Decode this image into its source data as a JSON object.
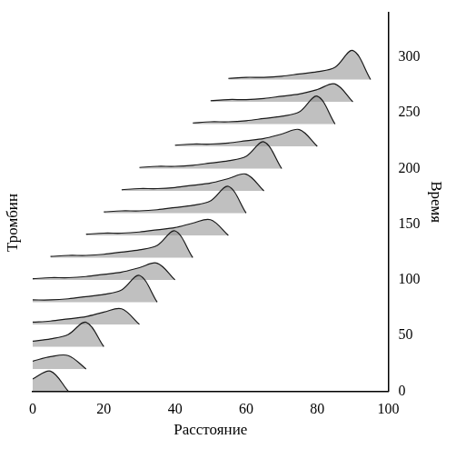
{
  "chart_data": {
    "type": "waterfall",
    "x_label": "Расстояние",
    "y_label": "Время",
    "z_label": "Тромбин",
    "color": "#1a1a1a",
    "grid": false,
    "x": [
      0,
      5,
      10,
      15,
      20,
      25,
      30,
      35,
      40,
      45,
      50,
      55,
      60,
      65,
      70,
      75,
      80,
      85,
      90,
      95,
      100
    ],
    "xlim": [
      0,
      100
    ],
    "xticks": [
      0,
      20,
      40,
      60,
      80,
      100
    ],
    "ylim": [
      0,
      340
    ],
    "yticks": [
      0,
      50,
      100,
      150,
      200,
      250,
      300
    ],
    "series": [
      {
        "time": 0,
        "values": [
          11,
          18,
          0,
          null,
          null,
          null,
          null,
          null,
          null,
          null,
          null,
          null,
          null,
          null,
          null,
          null,
          null,
          null,
          null,
          null,
          null
        ]
      },
      {
        "time": 20,
        "values": [
          7,
          11,
          12,
          0,
          null,
          null,
          null,
          null,
          null,
          null,
          null,
          null,
          null,
          null,
          null,
          null,
          null,
          null,
          null,
          null,
          null
        ]
      },
      {
        "time": 40,
        "values": [
          5,
          7,
          11,
          22,
          0,
          null,
          null,
          null,
          null,
          null,
          null,
          null,
          null,
          null,
          null,
          null,
          null,
          null,
          null,
          null,
          null
        ]
      },
      {
        "time": 60,
        "values": [
          2,
          3,
          5,
          7,
          11,
          14,
          0,
          null,
          null,
          null,
          null,
          null,
          null,
          null,
          null,
          null,
          null,
          null,
          null,
          null,
          null
        ]
      },
      {
        "time": 80,
        "values": [
          2,
          2,
          3,
          5,
          7,
          11,
          24,
          0,
          null,
          null,
          null,
          null,
          null,
          null,
          null,
          null,
          null,
          null,
          null,
          null,
          null
        ]
      },
      {
        "time": 100,
        "values": [
          1,
          2,
          2,
          3,
          5,
          7,
          11,
          15,
          0,
          null,
          null,
          null,
          null,
          null,
          null,
          null,
          null,
          null,
          null,
          null,
          null
        ]
      },
      {
        "time": 120,
        "values": [
          null,
          1,
          2,
          2,
          3,
          5,
          7,
          11,
          24,
          0,
          null,
          null,
          null,
          null,
          null,
          null,
          null,
          null,
          null,
          null,
          null
        ]
      },
      {
        "time": 140,
        "values": [
          null,
          null,
          null,
          1,
          2,
          2,
          3,
          5,
          7,
          11,
          14,
          0,
          null,
          null,
          null,
          null,
          null,
          null,
          null,
          null,
          null
        ]
      },
      {
        "time": 160,
        "values": [
          null,
          null,
          null,
          null,
          1,
          2,
          2,
          3,
          5,
          7,
          11,
          24,
          0,
          null,
          null,
          null,
          null,
          null,
          null,
          null,
          null
        ]
      },
      {
        "time": 180,
        "values": [
          null,
          null,
          null,
          null,
          null,
          1,
          2,
          2,
          3,
          5,
          7,
          11,
          15,
          0,
          null,
          null,
          null,
          null,
          null,
          null,
          null
        ]
      },
      {
        "time": 200,
        "values": [
          null,
          null,
          null,
          null,
          null,
          null,
          1,
          2,
          2,
          3,
          5,
          7,
          11,
          24,
          0,
          null,
          null,
          null,
          null,
          null,
          null
        ]
      },
      {
        "time": 220,
        "values": [
          null,
          null,
          null,
          null,
          null,
          null,
          null,
          null,
          1,
          2,
          2,
          3,
          5,
          7,
          11,
          15,
          0,
          null,
          null,
          null,
          null
        ]
      },
      {
        "time": 240,
        "values": [
          null,
          null,
          null,
          null,
          null,
          null,
          null,
          null,
          null,
          1,
          2,
          2,
          3,
          5,
          7,
          11,
          25,
          0,
          null,
          null,
          null
        ]
      },
      {
        "time": 260,
        "values": [
          null,
          null,
          null,
          null,
          null,
          null,
          null,
          null,
          null,
          null,
          1,
          2,
          2,
          3,
          5,
          7,
          11,
          16,
          0,
          null,
          null
        ]
      },
      {
        "time": 280,
        "values": [
          null,
          null,
          null,
          null,
          null,
          null,
          null,
          null,
          null,
          null,
          null,
          1,
          2,
          2,
          3,
          5,
          7,
          11,
          26,
          0,
          null
        ]
      }
    ]
  }
}
